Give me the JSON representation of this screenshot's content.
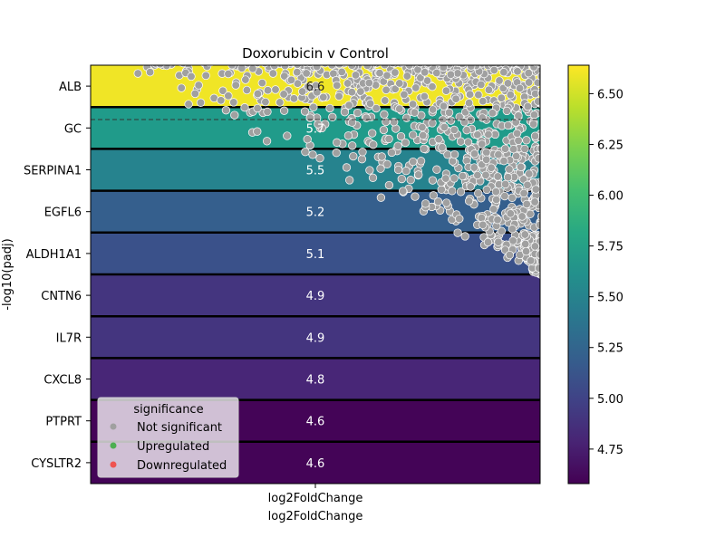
{
  "chart_data": {
    "type": "heatmap",
    "title": "Doxorubicin v Control",
    "xlabel": "log2FoldChange",
    "xlabel_secondary": "log2FoldChange",
    "ylabel": "-log10(padj)",
    "x_tick_label": "log2FoldChange",
    "rows": [
      "ALB",
      "GC",
      "SERPINA1",
      "EGFL6",
      "ALDH1A1",
      "CNTN6",
      "IL7R",
      "CXCL8",
      "PTPRT",
      "CYSLTR2"
    ],
    "values": [
      6.6,
      5.7,
      5.5,
      5.2,
      5.1,
      4.9,
      4.9,
      4.8,
      4.6,
      4.6
    ],
    "value_labels": [
      "6.6",
      "5.7",
      "5.5",
      "5.2",
      "5.1",
      "4.9",
      "4.9",
      "4.8",
      "4.6",
      "4.6"
    ],
    "colormap": "viridis",
    "colorbar": {
      "range": [
        4.58,
        6.64
      ],
      "ticks": [
        4.75,
        5.0,
        5.25,
        5.5,
        5.75,
        6.0,
        6.25,
        6.5
      ],
      "tick_labels": [
        "4.75",
        "5.00",
        "5.25",
        "5.50",
        "5.75",
        "6.00",
        "6.25",
        "6.50"
      ]
    },
    "legend": {
      "title": "significance",
      "placement": "lower-left",
      "entries": [
        {
          "label": "Not significant",
          "color": "#a0a0a0"
        },
        {
          "label": "Upregulated",
          "color": "#4caf50"
        },
        {
          "label": "Downregulated",
          "color": "#ef5350"
        }
      ]
    },
    "scatter_overlay": {
      "series": "Not significant",
      "color": "#a0a0a0",
      "edge_color": "#ffffff",
      "description_density": "dense near top rows, sparse toward bottom"
    },
    "grid": false
  }
}
